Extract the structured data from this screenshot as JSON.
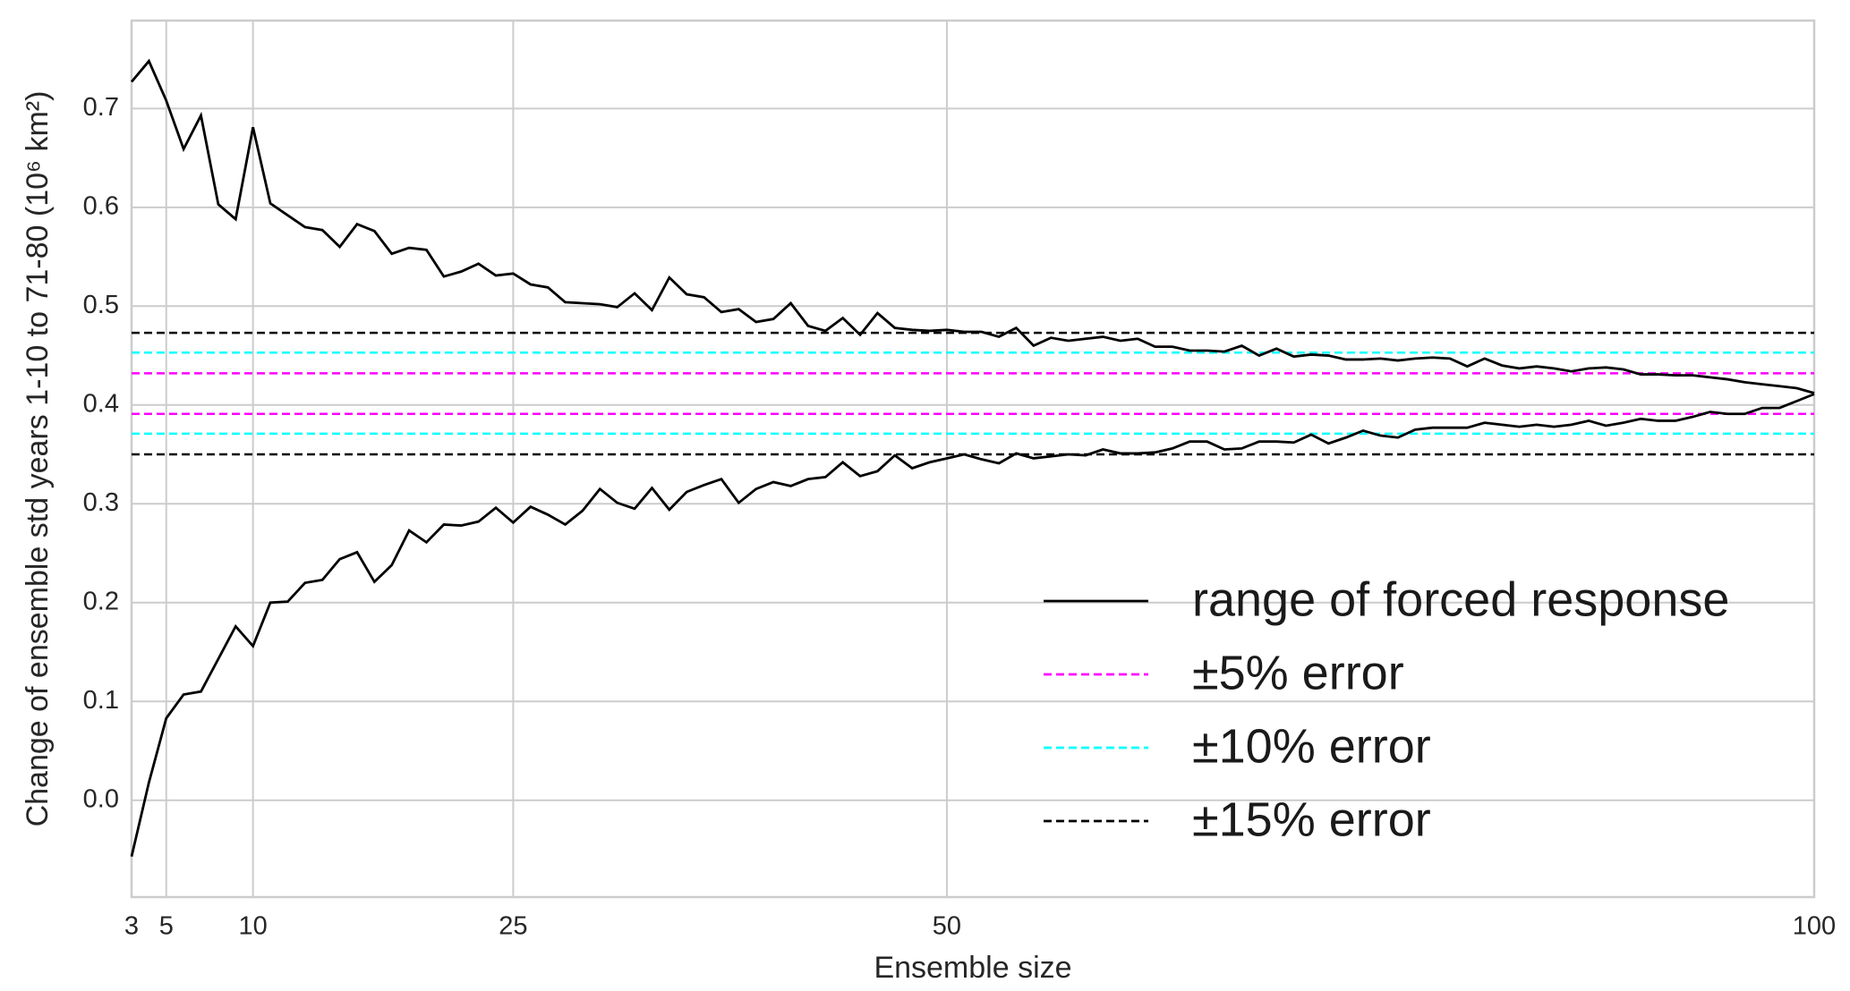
{
  "chart_data": {
    "type": "line",
    "x_label": "Ensemble size",
    "y_label": "Change of ensemble std years 1-10 to 71-80 (10⁶ km²)",
    "x": [
      3,
      4,
      5,
      6,
      7,
      8,
      9,
      10,
      11,
      12,
      13,
      14,
      15,
      16,
      17,
      18,
      19,
      20,
      21,
      22,
      23,
      24,
      25,
      26,
      27,
      28,
      29,
      30,
      31,
      32,
      33,
      34,
      35,
      36,
      37,
      38,
      39,
      40,
      41,
      42,
      43,
      44,
      45,
      46,
      47,
      48,
      49,
      50,
      51,
      52,
      53,
      54,
      55,
      56,
      57,
      58,
      59,
      60,
      61,
      62,
      63,
      64,
      65,
      66,
      67,
      68,
      69,
      70,
      71,
      72,
      73,
      74,
      75,
      76,
      77,
      78,
      79,
      80,
      81,
      82,
      83,
      84,
      85,
      86,
      87,
      88,
      89,
      90,
      91,
      92,
      93,
      94,
      95,
      96,
      97,
      98,
      99,
      100
    ],
    "series": [
      {
        "name": "range of forced response",
        "color": "#000000",
        "upper": [
          0.727,
          0.748,
          0.708,
          0.659,
          0.693,
          0.603,
          0.588,
          0.681,
          0.604,
          0.592,
          0.58,
          0.577,
          0.56,
          0.583,
          0.576,
          0.553,
          0.559,
          0.557,
          0.53,
          0.535,
          0.543,
          0.531,
          0.533,
          0.522,
          0.519,
          0.504,
          0.503,
          0.502,
          0.499,
          0.513,
          0.496,
          0.529,
          0.512,
          0.509,
          0.494,
          0.497,
          0.484,
          0.487,
          0.503,
          0.48,
          0.475,
          0.488,
          0.471,
          0.493,
          0.478,
          0.476,
          0.475,
          0.476,
          0.474,
          0.474,
          0.469,
          0.478,
          0.46,
          0.468,
          0.465,
          0.467,
          0.469,
          0.465,
          0.467,
          0.459,
          0.459,
          0.455,
          0.455,
          0.454,
          0.46,
          0.45,
          0.457,
          0.449,
          0.451,
          0.45,
          0.446,
          0.446,
          0.447,
          0.445,
          0.447,
          0.448,
          0.447,
          0.439,
          0.447,
          0.44,
          0.437,
          0.439,
          0.437,
          0.434,
          0.437,
          0.438,
          0.436,
          0.431,
          0.431,
          0.43,
          0.43,
          0.428,
          0.426,
          0.423,
          0.421,
          0.419,
          0.417,
          0.412
        ],
        "lower": [
          -0.057,
          0.018,
          0.083,
          0.107,
          0.11,
          0.143,
          0.176,
          0.156,
          0.2,
          0.201,
          0.22,
          0.223,
          0.244,
          0.251,
          0.221,
          0.238,
          0.273,
          0.261,
          0.279,
          0.278,
          0.282,
          0.296,
          0.281,
          0.297,
          0.289,
          0.279,
          0.293,
          0.315,
          0.301,
          0.295,
          0.316,
          0.294,
          0.312,
          0.319,
          0.325,
          0.301,
          0.315,
          0.322,
          0.318,
          0.325,
          0.327,
          0.342,
          0.328,
          0.333,
          0.349,
          0.336,
          0.342,
          0.346,
          0.35,
          0.345,
          0.341,
          0.351,
          0.346,
          0.348,
          0.35,
          0.349,
          0.355,
          0.351,
          0.351,
          0.352,
          0.356,
          0.363,
          0.363,
          0.355,
          0.356,
          0.363,
          0.363,
          0.362,
          0.37,
          0.361,
          0.367,
          0.374,
          0.369,
          0.367,
          0.375,
          0.377,
          0.377,
          0.377,
          0.382,
          0.38,
          0.378,
          0.38,
          0.378,
          0.38,
          0.384,
          0.379,
          0.382,
          0.386,
          0.384,
          0.384,
          0.388,
          0.393,
          0.391,
          0.391,
          0.397,
          0.397,
          0.404,
          0.411
        ]
      }
    ],
    "reference_lines": [
      {
        "name": "±5% error",
        "color": "#ff00ff",
        "values": [
          0.391,
          0.432
        ]
      },
      {
        "name": "±10% error",
        "color": "#00ffff",
        "values": [
          0.371,
          0.453
        ]
      },
      {
        "name": "±15% error",
        "color": "#000000",
        "values": [
          0.35,
          0.473
        ]
      }
    ],
    "xlim": [
      3,
      100
    ],
    "xticks": [
      3,
      5,
      10,
      25,
      50,
      100
    ],
    "ylim": [
      -0.098,
      0.789
    ],
    "yticks": [
      {
        "value": 0,
        "label": "0.0"
      },
      0.1,
      0.2,
      0.3,
      0.4,
      0.5,
      0.6,
      0.7
    ],
    "grid": true,
    "legend": "lower right"
  }
}
